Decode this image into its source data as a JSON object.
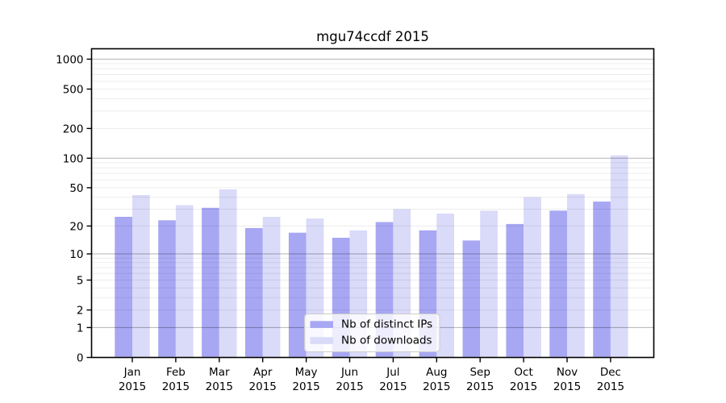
{
  "chart_data": {
    "type": "bar",
    "title": "mgu74ccdf 2015",
    "year": "2015",
    "months": [
      "Jan",
      "Feb",
      "Mar",
      "Apr",
      "May",
      "Jun",
      "Jul",
      "Aug",
      "Sep",
      "Oct",
      "Nov",
      "Dec"
    ],
    "categories": [
      "Jan 2015",
      "Feb 2015",
      "Mar 2015",
      "Apr 2015",
      "May 2015",
      "Jun 2015",
      "Jul 2015",
      "Aug 2015",
      "Sep 2015",
      "Oct 2015",
      "Nov 2015",
      "Dec 2015"
    ],
    "series": [
      {
        "name": "Nb of distinct IPs",
        "color": "#a7a7f3",
        "values": [
          25,
          23,
          31,
          19,
          17,
          15,
          22,
          18,
          14,
          21,
          29,
          36
        ]
      },
      {
        "name": "Nb of downloads",
        "color": "#dadaf9",
        "values": [
          42,
          33,
          48,
          25,
          24,
          18,
          30,
          27,
          29,
          40,
          43,
          107
        ]
      }
    ],
    "y_axis": {
      "scale": "log10(1+x)",
      "ticks": [
        0,
        1,
        2,
        5,
        10,
        20,
        50,
        100,
        200,
        500,
        1000
      ],
      "ylim": [
        0,
        1000
      ]
    },
    "grid": {
      "major_lines": [
        1,
        10,
        100,
        1000
      ],
      "minor_multipliers": [
        2,
        3,
        4,
        5,
        6,
        7,
        8,
        9
      ],
      "minor_decades": [
        1,
        10,
        100
      ]
    },
    "legend": {
      "position": "inside bottom-center"
    },
    "colors": {
      "background": "#ffffff",
      "axis": "#000000",
      "grid_major": "rgba(0,0,0,0.30)",
      "grid_minor": "rgba(0,0,0,0.075)",
      "legend_border": "#cccccc",
      "legend_fill": "rgba(255,255,255,0.8)"
    }
  }
}
